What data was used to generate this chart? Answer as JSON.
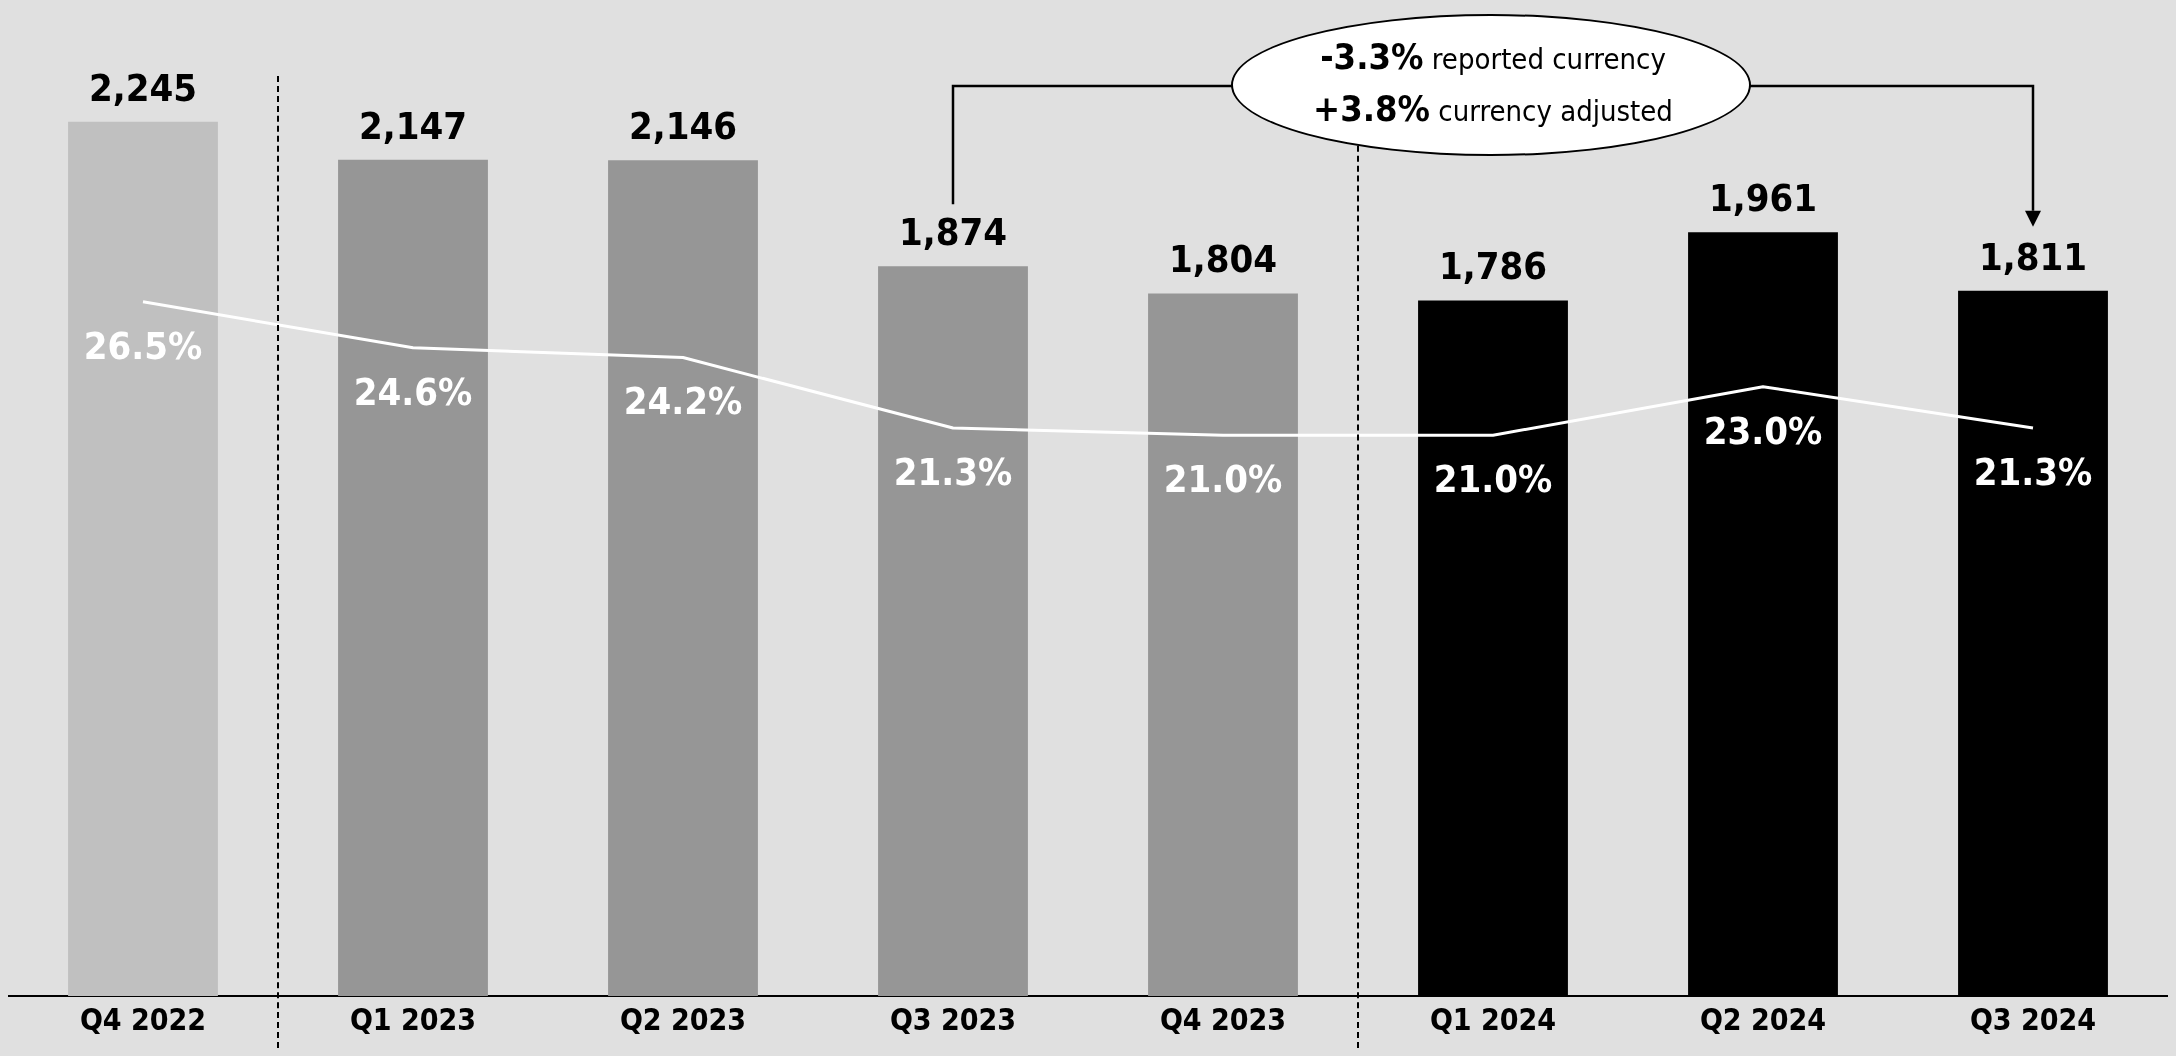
{
  "chart_data": {
    "type": "bar",
    "categories": [
      "Q4 2022",
      "Q1 2023",
      "Q2 2023",
      "Q3 2023",
      "Q4 2023",
      "Q1 2024",
      "Q2 2024",
      "Q3 2024"
    ],
    "series": [
      {
        "colors": [
          "#c0c0c0",
          "#969696",
          "#969696",
          "#969696",
          "#969696",
          "#000000",
          "#000000",
          "#000000"
        ],
        "values": [
          2245,
          2147,
          2146,
          1874,
          1804,
          1786,
          1961,
          1811
        ],
        "value_labels": [
          "2,245",
          "2,147",
          "2,146",
          "1,874",
          "1,804",
          "1,786",
          "1,961",
          "1,811"
        ]
      },
      {
        "type": "line",
        "axis": "y2",
        "color": "#ffffff",
        "values": [
          26.5,
          24.6,
          24.2,
          21.3,
          21.0,
          21.0,
          23.0,
          21.3
        ],
        "value_labels": [
          "26.5%",
          "24.6%",
          "24.2%",
          "21.3%",
          "21.0%",
          "21.0%",
          "23.0%",
          "21.3%"
        ]
      }
    ],
    "annotations": [
      "-3.3% reported currency",
      "+3.8% currency adjusted"
    ],
    "grid": false,
    "legend": false,
    "marker": "none",
    "tick_labels": "x"
  }
}
